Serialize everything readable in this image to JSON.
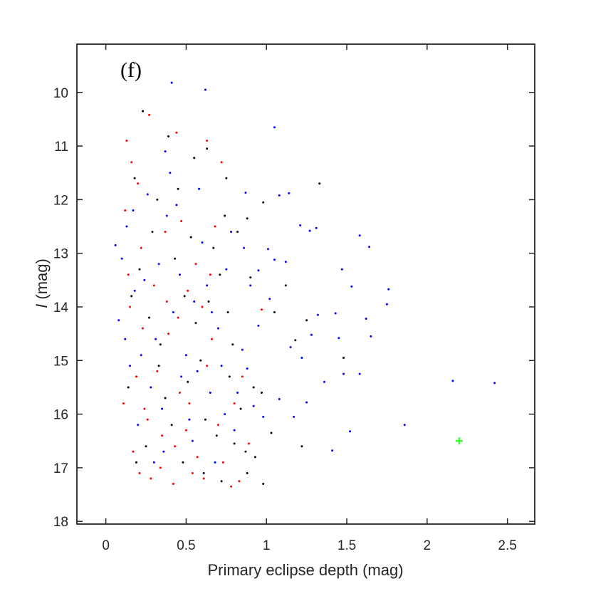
{
  "chart_data": {
    "type": "scatter",
    "panel_label": "(f)",
    "xlabel": "Primary eclipse depth (mag)",
    "ylabel_symbol": "I",
    "ylabel_unit": " (mag)",
    "xlim": [
      -0.18,
      2.67
    ],
    "ylim": [
      18.05,
      9.1
    ],
    "y_reversed": true,
    "x_ticks": [
      0,
      0.5,
      1,
      1.5,
      2,
      2.5
    ],
    "x_tick_labels": [
      "0",
      "0.5",
      "1",
      "1.5",
      "2",
      "2.5"
    ],
    "y_ticks": [
      10,
      11,
      12,
      13,
      14,
      15,
      16,
      17,
      18
    ],
    "y_tick_labels": [
      "10",
      "11",
      "12",
      "13",
      "14",
      "15",
      "16",
      "17",
      "18"
    ],
    "grid": false,
    "colors": {
      "black": "#000000",
      "red": "#ff0000",
      "blue": "#0000ff",
      "highlight": "#33ff33",
      "axes": "#262626"
    },
    "series": [
      {
        "color": "#0000ff",
        "points": [
          [
            0.41,
            9.82
          ],
          [
            0.62,
            9.95
          ],
          [
            1.05,
            10.65
          ],
          [
            0.37,
            11.1
          ],
          [
            1.14,
            11.88
          ],
          [
            1.08,
            11.92
          ],
          [
            0.87,
            11.87
          ],
          [
            1.27,
            12.58
          ],
          [
            1.31,
            12.53
          ],
          [
            1.21,
            12.48
          ],
          [
            1.58,
            12.67
          ],
          [
            1.64,
            12.88
          ],
          [
            1.01,
            12.92
          ],
          [
            0.95,
            13.32
          ],
          [
            1.05,
            13.12
          ],
          [
            1.12,
            13.16
          ],
          [
            1.47,
            13.3
          ],
          [
            1.53,
            13.62
          ],
          [
            1.76,
            13.67
          ],
          [
            1.75,
            13.95
          ],
          [
            1.43,
            14.12
          ],
          [
            1.62,
            14.22
          ],
          [
            1.32,
            14.15
          ],
          [
            1.28,
            14.52
          ],
          [
            1.45,
            14.58
          ],
          [
            1.65,
            14.55
          ],
          [
            1.15,
            14.75
          ],
          [
            1.22,
            14.95
          ],
          [
            1.48,
            15.25
          ],
          [
            1.58,
            15.25
          ],
          [
            1.36,
            15.4
          ],
          [
            1.52,
            16.32
          ],
          [
            1.25,
            15.78
          ],
          [
            1.17,
            16.05
          ],
          [
            1.41,
            16.68
          ],
          [
            1.86,
            16.2
          ],
          [
            2.16,
            15.38
          ],
          [
            2.42,
            15.42
          ],
          [
            1.08,
            15.72
          ],
          [
            0.98,
            16.05
          ],
          [
            0.92,
            15.85
          ],
          [
            0.88,
            15.15
          ],
          [
            0.95,
            14.35
          ],
          [
            1.02,
            13.85
          ],
          [
            0.06,
            12.85
          ],
          [
            0.08,
            14.25
          ],
          [
            0.1,
            13.1
          ],
          [
            0.13,
            12.5
          ],
          [
            0.18,
            13.7
          ],
          [
            0.22,
            14.9
          ],
          [
            0.28,
            15.5
          ],
          [
            0.33,
            13.2
          ],
          [
            0.38,
            12.3
          ],
          [
            0.42,
            14.1
          ],
          [
            0.47,
            15.3
          ],
          [
            0.52,
            16.1
          ],
          [
            0.55,
            13.9
          ],
          [
            0.6,
            12.8
          ],
          [
            0.65,
            15.6
          ],
          [
            0.7,
            14.4
          ],
          [
            0.75,
            13.3
          ],
          [
            0.8,
            16.3
          ],
          [
            0.85,
            14.8
          ],
          [
            0.15,
            15.1
          ],
          [
            0.2,
            16.2
          ],
          [
            0.26,
            11.9
          ],
          [
            0.31,
            14.6
          ],
          [
            0.36,
            16.7
          ],
          [
            0.44,
            12.1
          ],
          [
            0.5,
            14.9
          ],
          [
            0.58,
            11.8
          ],
          [
            0.63,
            13.6
          ],
          [
            0.68,
            16.9
          ],
          [
            0.72,
            15.1
          ],
          [
            0.78,
            12.6
          ],
          [
            0.12,
            14.6
          ],
          [
            0.17,
            12.2
          ],
          [
            0.24,
            13.5
          ],
          [
            0.35,
            15.9
          ],
          [
            0.46,
            13.4
          ],
          [
            0.54,
            16.5
          ],
          [
            0.66,
            14.1
          ],
          [
            0.82,
            15.6
          ],
          [
            0.9,
            13.6
          ],
          [
            0.3,
            16.9
          ],
          [
            0.4,
            11.5
          ],
          [
            0.57,
            15.2
          ],
          [
            0.74,
            16.0
          ],
          [
            0.86,
            12.9
          ]
        ]
      },
      {
        "color": "#000000",
        "points": [
          [
            0.23,
            10.35
          ],
          [
            0.39,
            10.82
          ],
          [
            0.55,
            11.22
          ],
          [
            0.63,
            11.05
          ],
          [
            0.75,
            11.6
          ],
          [
            0.98,
            12.05
          ],
          [
            1.33,
            11.7
          ],
          [
            0.88,
            12.35
          ],
          [
            0.82,
            12.6
          ],
          [
            0.9,
            13.45
          ],
          [
            1.12,
            13.6
          ],
          [
            1.05,
            14.1
          ],
          [
            1.25,
            14.25
          ],
          [
            1.18,
            14.62
          ],
          [
            1.48,
            14.95
          ],
          [
            0.97,
            15.6
          ],
          [
            1.03,
            16.35
          ],
          [
            1.22,
            16.6
          ],
          [
            0.98,
            17.3
          ],
          [
            0.93,
            16.8
          ],
          [
            0.88,
            17.1
          ],
          [
            0.8,
            16.55
          ],
          [
            0.72,
            17.25
          ],
          [
            0.18,
            11.6
          ],
          [
            0.21,
            13.3
          ],
          [
            0.27,
            14.2
          ],
          [
            0.32,
            12.0
          ],
          [
            0.37,
            15.7
          ],
          [
            0.43,
            13.1
          ],
          [
            0.48,
            16.9
          ],
          [
            0.53,
            12.7
          ],
          [
            0.59,
            15.0
          ],
          [
            0.64,
            13.9
          ],
          [
            0.69,
            16.4
          ],
          [
            0.74,
            12.3
          ],
          [
            0.79,
            14.7
          ],
          [
            0.84,
            15.9
          ],
          [
            0.14,
            15.5
          ],
          [
            0.25,
            16.6
          ],
          [
            0.34,
            14.7
          ],
          [
            0.45,
            11.8
          ],
          [
            0.51,
            15.4
          ],
          [
            0.61,
            17.1
          ],
          [
            0.67,
            12.9
          ],
          [
            0.77,
            15.3
          ],
          [
            0.16,
            13.8
          ],
          [
            0.29,
            12.6
          ],
          [
            0.41,
            16.2
          ],
          [
            0.56,
            14.3
          ],
          [
            0.71,
            13.4
          ],
          [
            0.87,
            16.7
          ],
          [
            0.19,
            16.9
          ],
          [
            0.33,
            15.1
          ],
          [
            0.49,
            13.8
          ],
          [
            0.62,
            16.1
          ],
          [
            0.76,
            14.1
          ],
          [
            0.92,
            15.5
          ]
        ]
      },
      {
        "color": "#ff0000",
        "points": [
          [
            0.27,
            10.42
          ],
          [
            0.44,
            10.75
          ],
          [
            0.63,
            10.9
          ],
          [
            0.72,
            11.3
          ],
          [
            0.13,
            10.9
          ],
          [
            0.2,
            11.7
          ],
          [
            0.97,
            14.05
          ],
          [
            0.85,
            15.3
          ],
          [
            0.89,
            16.55
          ],
          [
            0.83,
            17.25
          ],
          [
            0.78,
            17.35
          ],
          [
            0.12,
            12.2
          ],
          [
            0.15,
            14.0
          ],
          [
            0.19,
            15.3
          ],
          [
            0.22,
            12.9
          ],
          [
            0.26,
            16.1
          ],
          [
            0.3,
            13.6
          ],
          [
            0.34,
            17.0
          ],
          [
            0.39,
            14.5
          ],
          [
            0.43,
            16.6
          ],
          [
            0.47,
            12.4
          ],
          [
            0.52,
            15.8
          ],
          [
            0.56,
            13.2
          ],
          [
            0.61,
            17.2
          ],
          [
            0.66,
            14.6
          ],
          [
            0.7,
            16.2
          ],
          [
            0.11,
            15.8
          ],
          [
            0.14,
            13.4
          ],
          [
            0.17,
            16.7
          ],
          [
            0.23,
            14.4
          ],
          [
            0.28,
            17.2
          ],
          [
            0.32,
            15.2
          ],
          [
            0.37,
            12.6
          ],
          [
            0.42,
            17.3
          ],
          [
            0.46,
            15.6
          ],
          [
            0.51,
            13.7
          ],
          [
            0.57,
            16.8
          ],
          [
            0.63,
            15.1
          ],
          [
            0.68,
            12.5
          ],
          [
            0.73,
            16.9
          ],
          [
            0.16,
            11.3
          ],
          [
            0.24,
            15.9
          ],
          [
            0.35,
            16.4
          ],
          [
            0.45,
            14.2
          ],
          [
            0.54,
            17.1
          ],
          [
            0.65,
            13.4
          ],
          [
            0.8,
            15.8
          ],
          [
            0.21,
            17.1
          ],
          [
            0.38,
            13.9
          ],
          [
            0.5,
            16.3
          ],
          [
            0.6,
            14.0
          ]
        ]
      }
    ],
    "highlight_point": {
      "x": 2.2,
      "y": 16.5,
      "color": "#33ff33",
      "marker": "plus"
    }
  }
}
